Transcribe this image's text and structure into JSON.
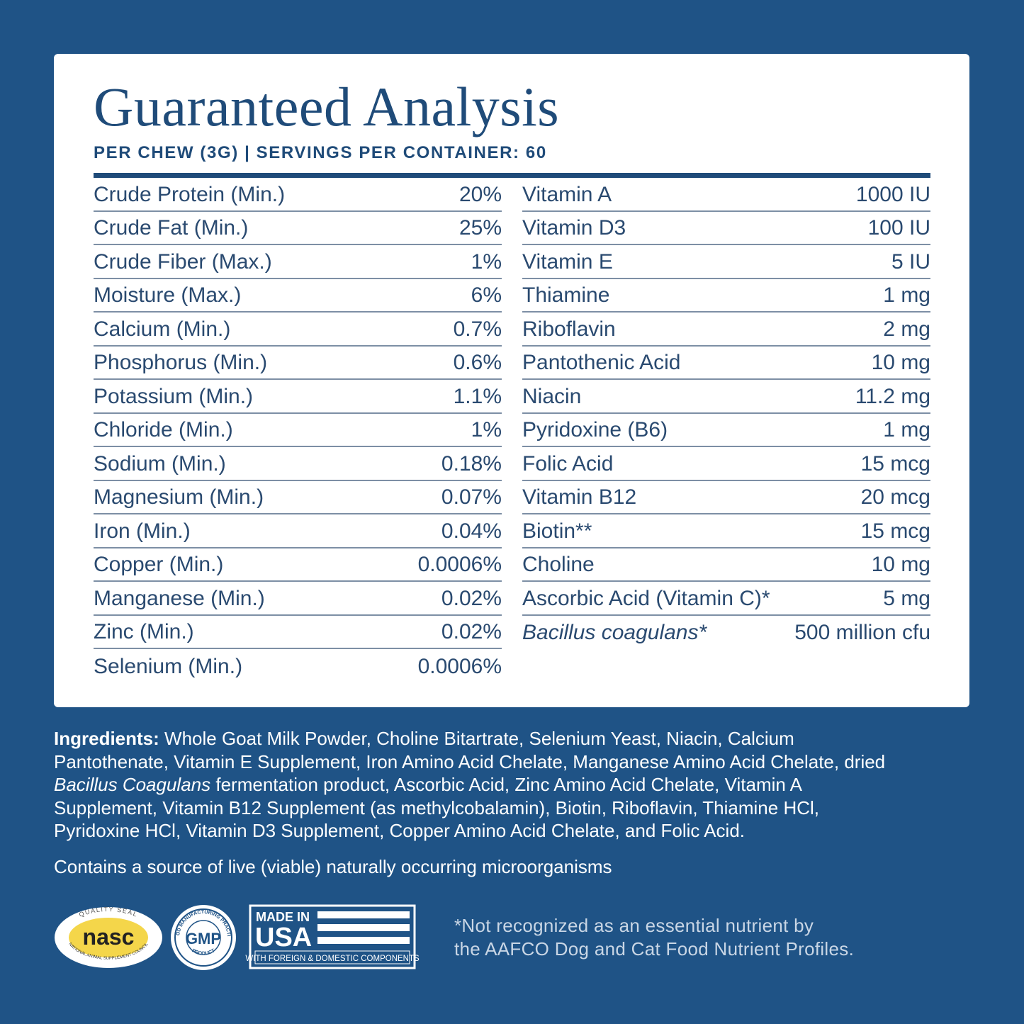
{
  "header": {
    "title": "Guaranteed Analysis",
    "subtitle": "PER CHEW (3G) | SERVINGS PER CONTAINER: 60"
  },
  "table": {
    "left": [
      [
        "Crude Protein (Min.)",
        "20%"
      ],
      [
        "Crude Fat (Min.)",
        "25%"
      ],
      [
        "Crude Fiber (Max.)",
        "1%"
      ],
      [
        "Moisture (Max.)",
        "6%"
      ],
      [
        "Calcium (Min.)",
        "0.7%"
      ],
      [
        "Phosphorus (Min.)",
        "0.6%"
      ],
      [
        "Potassium (Min.)",
        "1.1%"
      ],
      [
        "Chloride (Min.)",
        "1%"
      ],
      [
        "Sodium (Min.)",
        "0.18%"
      ],
      [
        "Magnesium (Min.)",
        "0.07%"
      ],
      [
        "Iron (Min.)",
        "0.04%"
      ],
      [
        "Copper (Min.)",
        "0.0006%"
      ],
      [
        "Manganese (Min.)",
        "0.02%"
      ],
      [
        "Zinc (Min.)",
        "0.02%"
      ],
      [
        "Selenium (Min.)",
        "0.0006%"
      ]
    ],
    "right": [
      [
        "Vitamin A",
        "1000 IU"
      ],
      [
        "Vitamin D3",
        "100 IU"
      ],
      [
        "Vitamin E",
        "5 IU"
      ],
      [
        "Thiamine",
        "1 mg"
      ],
      [
        "Riboflavin",
        "2 mg"
      ],
      [
        "Pantothenic Acid",
        "10 mg"
      ],
      [
        "Niacin",
        "11.2 mg"
      ],
      [
        "Pyridoxine (B6)",
        "1 mg"
      ],
      [
        "Folic Acid",
        "15 mcg"
      ],
      [
        "Vitamin B12",
        "20 mcg"
      ],
      [
        "Biotin**",
        "15 mcg"
      ],
      [
        "Choline",
        "10 mg"
      ],
      [
        "Ascorbic Acid (Vitamin C)*",
        "5 mg"
      ],
      [
        "Bacillus coagulans*",
        "500 million cfu"
      ]
    ]
  },
  "ingredients": {
    "label": "Ingredients:",
    "lines": [
      "Whole Goat Milk Powder, Choline Bitartrate, Selenium Yeast, Niacin, Calcium",
      "Pantothenate, Vitamin E Supplement, Iron Amino Acid Chelate, Manganese Amino Acid Chelate, dried",
      "fermentation product, Ascorbic Acid, Zinc Amino Acid Chelate, Vitamin A",
      "Supplement, Vitamin B12 Supplement (as methylcobalamin), Biotin, Riboflavin, Thiamine HCl,",
      "Pyridoxine HCl, Vitamin D3 Supplement, Copper Amino Acid Chelate, and Folic Acid."
    ],
    "italic": "Bacillus Coagulans"
  },
  "note": "Contains a source of live (viable) naturally occurring microorganisms",
  "badges": {
    "nasc": {
      "top": "QUALITY SEAL",
      "logo": "nasc",
      "bottom": "NATIONAL ANIMAL SUPPLEMENT COUNCIL"
    },
    "gmp": {
      "top": "GOOD MANUFACTURING PRACTICE",
      "logo": "GMP",
      "bottom": "PRODUCT"
    },
    "usa": {
      "line1": "MADE IN",
      "line2": "USA",
      "line3": "WITH FOREIGN & DOMESTIC COMPONENTS"
    }
  },
  "footnote": {
    "lines": [
      "*Not recognized as an essential nutrient by",
      "the AAFCO Dog and Cat Food Nutrient Profiles."
    ]
  }
}
